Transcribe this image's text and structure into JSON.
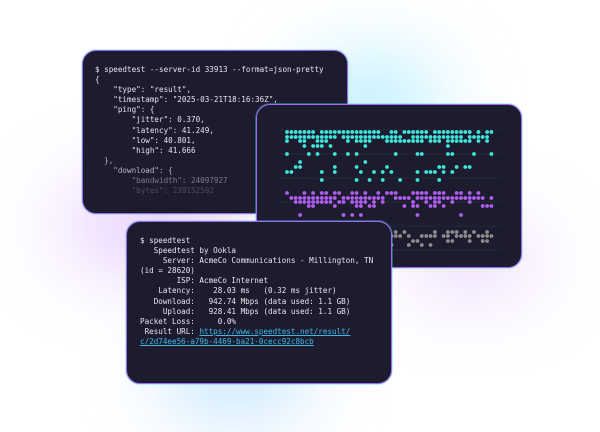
{
  "json_terminal": {
    "lines": [
      "$ speedtest --server-id 33913 --format=json-pretty",
      "{",
      "    \"type\": \"result\",",
      "    \"timestamp\": \"2025-03-21T18:16:36Z\",",
      "    \"ping\": {",
      "        \"jitter\": 0.370,",
      "        \"latency\": 41.249,",
      "        \"low\": 40.801,",
      "        \"high\": 41.666",
      "  },",
      "    \"download\": {",
      "        \"bandwidth\": 24097927",
      "        \"bytes\": 239152592"
    ]
  },
  "dots_panel": {
    "colors": {
      "download": "#3ee6dc",
      "upload": "#b05ef0",
      "latency": "#8c8c8c",
      "grid": "#2a2a40"
    }
  },
  "cli_terminal": {
    "lines": [
      "$ speedtest",
      "",
      "   Speedtest by Ookla",
      "",
      "     Server: AcmeCo Communications - Millington, TN",
      "(id = 28620)",
      "        ISP: AcmeCo Internet",
      "    Latency:    28.03 ms   (0.32 ms jitter)",
      "   Download:   942.74 Mbps (data used: 1.1 GB)",
      "     Upload:   928.41 Mbps (data used: 1.1 GB)",
      "Packet Loss:     0.0%"
    ],
    "result_label": " Result URL: ",
    "result_url_1": "https://www.speedtest.net/result/",
    "result_url_2": "c/2d74ee56-a79b-4469-ba21-0cecc92c8bcb"
  },
  "colors": {
    "card_bg": "#1c1c2e",
    "border": "#9b6cf0",
    "link": "#3fb6e8"
  }
}
